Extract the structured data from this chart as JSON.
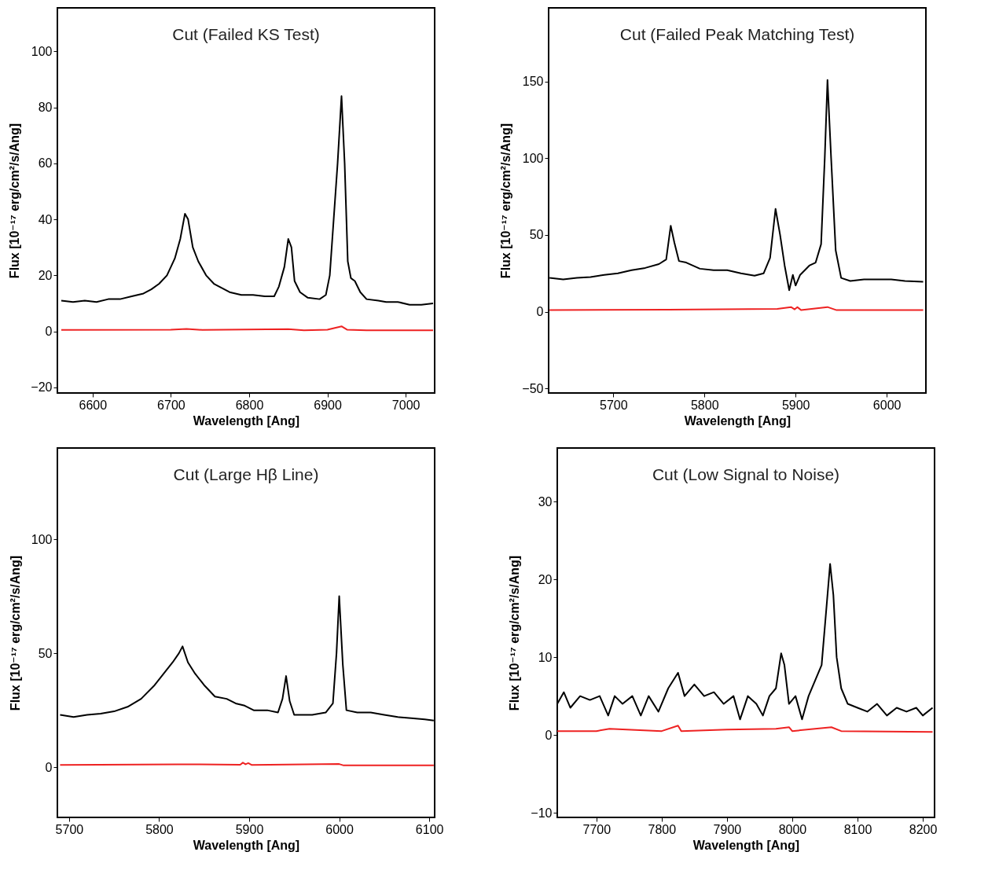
{
  "chart_data": [
    {
      "type": "line",
      "title": "Cut (Failed KS Test)",
      "xlabel": "Wavelength [Ang]",
      "ylabel": "Flux [10⁻¹⁷ erg/cm²/s/Ang]",
      "xlim": [
        6555,
        7037
      ],
      "ylim": [
        -22,
        115.5
      ],
      "xticks": [
        6600,
        6700,
        6800,
        6900,
        7000
      ],
      "yticks": [
        -20,
        0,
        20,
        40,
        60,
        80,
        100
      ],
      "series": [
        {
          "color": "#000000",
          "x": [
            6560,
            6575,
            6590,
            6605,
            6620,
            6635,
            6650,
            6665,
            6675,
            6685,
            6695,
            6705,
            6712,
            6718,
            6722,
            6728,
            6735,
            6745,
            6755,
            6765,
            6775,
            6790,
            6805,
            6820,
            6832,
            6838,
            6845,
            6850,
            6854,
            6858,
            6865,
            6875,
            6890,
            6898,
            6903,
            6908,
            6913,
            6918,
            6922,
            6926,
            6930,
            6935,
            6942,
            6950,
            6965,
            6975,
            6990,
            7005,
            7020,
            7035
          ],
          "values": [
            11,
            10.5,
            11,
            10.5,
            11.5,
            11.5,
            12.5,
            13.5,
            15,
            17,
            20,
            26,
            33,
            42,
            40,
            30,
            25,
            20,
            17,
            15.5,
            14,
            13,
            13,
            12.5,
            12.5,
            16,
            23,
            33,
            30,
            18,
            14,
            12,
            11.5,
            13,
            20,
            40,
            60,
            84,
            60,
            25,
            19,
            18,
            14,
            11.5,
            11,
            10.5,
            10.5,
            9.5,
            9.5,
            10
          ]
        },
        {
          "color": "#ee2222",
          "x": [
            6560,
            6700,
            6720,
            6740,
            6850,
            6870,
            6900,
            6918,
            6925,
            6950,
            7035
          ],
          "values": [
            0.5,
            0.6,
            0.9,
            0.5,
            0.8,
            0.4,
            0.6,
            1.8,
            0.6,
            0.4,
            0.4
          ]
        }
      ]
    },
    {
      "type": "line",
      "title": "Cut (Failed Peak Matching Test)",
      "xlabel": "Wavelength [Ang]",
      "ylabel": "Flux [10⁻¹⁷ erg/cm²/s/Ang]",
      "xlim": [
        5629,
        6043
      ],
      "ylim": [
        -53,
        198
      ],
      "xticks": [
        5700,
        5800,
        5900,
        6000
      ],
      "yticks": [
        -50,
        0,
        50,
        100,
        150
      ],
      "series": [
        {
          "color": "#000000",
          "x": [
            5630,
            5645,
            5660,
            5675,
            5690,
            5705,
            5720,
            5735,
            5750,
            5758,
            5763,
            5767,
            5772,
            5780,
            5795,
            5810,
            5825,
            5840,
            5855,
            5865,
            5872,
            5878,
            5883,
            5888,
            5893,
            5897,
            5900,
            5905,
            5915,
            5922,
            5928,
            5932,
            5935,
            5939,
            5944,
            5950,
            5960,
            5975,
            5990,
            6005,
            6020,
            6040
          ],
          "values": [
            22,
            21,
            22,
            22.5,
            24,
            25,
            27,
            28.5,
            31,
            34,
            56,
            45,
            33,
            32,
            28,
            27,
            27,
            25,
            23.5,
            25,
            35,
            67,
            50,
            30,
            14,
            24,
            17,
            24,
            30,
            32,
            44,
            100,
            151,
            100,
            40,
            22,
            20,
            21,
            21,
            21,
            20,
            19.5
          ]
        },
        {
          "color": "#ee2222",
          "x": [
            5630,
            5760,
            5880,
            5895,
            5899,
            5902,
            5906,
            5935,
            5945,
            6040
          ],
          "values": [
            1,
            1.3,
            1.8,
            3,
            1.5,
            3,
            1,
            3,
            1,
            1
          ]
        }
      ]
    },
    {
      "type": "line",
      "title": "Cut (Large Hβ Line)",
      "xlabel": "Wavelength [Ang]",
      "ylabel": "Flux [10⁻¹⁷ erg/cm²/s/Ang]",
      "xlim": [
        5687,
        6106
      ],
      "ylim": [
        -22,
        140
      ],
      "xticks": [
        5700,
        5800,
        5900,
        6000,
        6100
      ],
      "yticks": [
        0,
        50,
        100
      ],
      "series": [
        {
          "color": "#000000",
          "x": [
            5690,
            5705,
            5720,
            5735,
            5750,
            5765,
            5780,
            5795,
            5805,
            5815,
            5822,
            5826,
            5832,
            5840,
            5850,
            5862,
            5875,
            5885,
            5895,
            5905,
            5920,
            5932,
            5937,
            5941,
            5945,
            5950,
            5970,
            5985,
            5993,
            5997,
            6000,
            6004,
            6008,
            6020,
            6035,
            6050,
            6065,
            6080,
            6095,
            6105
          ],
          "values": [
            23,
            22,
            23,
            23.5,
            24.5,
            26.5,
            30,
            36,
            41,
            46,
            50,
            53,
            46,
            41,
            36,
            31,
            30,
            28,
            27,
            25,
            25,
            24,
            30,
            40,
            29,
            23,
            23,
            24,
            28,
            50,
            75,
            45,
            25,
            24,
            24,
            23,
            22,
            21.5,
            21,
            20.5
          ]
        },
        {
          "color": "#ee2222",
          "x": [
            5690,
            5820,
            5890,
            5893,
            5896,
            5899,
            5903,
            6000,
            6005,
            6105
          ],
          "values": [
            1,
            1.3,
            1.1,
            2,
            1.3,
            1.8,
            1,
            1.4,
            0.8,
            0.8
          ]
        }
      ]
    },
    {
      "type": "line",
      "title": "Cut (Low Signal to Noise)",
      "xlabel": "Wavelength [Ang]",
      "ylabel": "Flux [10⁻¹⁷ erg/cm²/s/Ang]",
      "xlim": [
        7640,
        8218
      ],
      "ylim": [
        -10.6,
        36.9
      ],
      "xticks": [
        7700,
        7800,
        7900,
        8000,
        8100,
        8200
      ],
      "yticks": [
        -10,
        0,
        10,
        20,
        30
      ],
      "series": [
        {
          "color": "#000000",
          "x": [
            7640,
            7650,
            7660,
            7675,
            7690,
            7705,
            7718,
            7728,
            7740,
            7755,
            7768,
            7780,
            7795,
            7810,
            7825,
            7835,
            7850,
            7865,
            7880,
            7895,
            7910,
            7920,
            7932,
            7945,
            7955,
            7965,
            7975,
            7983,
            7988,
            7995,
            8005,
            8015,
            8025,
            8035,
            8045,
            8052,
            8058,
            8063,
            8068,
            8075,
            8085,
            8100,
            8115,
            8130,
            8145,
            8160,
            8175,
            8190,
            8200,
            8215
          ],
          "values": [
            4,
            5.5,
            3.5,
            5,
            4.5,
            5,
            2.5,
            5,
            4,
            5,
            2.5,
            5,
            3,
            6,
            8,
            5,
            6.5,
            5,
            5.5,
            4,
            5,
            2,
            5,
            4,
            2.5,
            5,
            6,
            10.5,
            9,
            4,
            5,
            2,
            5,
            7,
            9,
            16,
            22,
            18,
            10,
            6,
            4,
            3.5,
            3,
            4,
            2.5,
            3.5,
            3,
            3.5,
            2.5,
            3.5
          ]
        },
        {
          "color": "#ee2222",
          "x": [
            7640,
            7700,
            7720,
            7800,
            7825,
            7830,
            7900,
            7975,
            7995,
            8000,
            8060,
            8075,
            8215
          ],
          "values": [
            0.5,
            0.5,
            0.8,
            0.5,
            1.2,
            0.5,
            0.7,
            0.8,
            1,
            0.5,
            1,
            0.5,
            0.4
          ]
        }
      ]
    }
  ]
}
